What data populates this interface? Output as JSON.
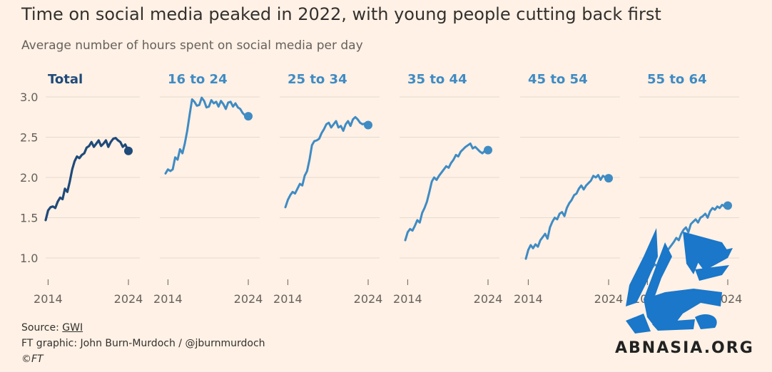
{
  "title": "Time on social media peaked in 2022, with young people cutting back first",
  "subtitle": "Average number of hours spent on social media per day",
  "source_prefix": "Source: ",
  "source_link": "GWI",
  "credit": "FT graphic: John Burn-Murdoch / @jburnmurdoch",
  "copyright": "©FT",
  "watermark_text": "ABNASIA.ORG",
  "colors": {
    "total": "#1f4a7a",
    "age": "#3f8bc4",
    "grid": "#e6d9ce",
    "background": "#fff1e5"
  },
  "chart_data": {
    "type": "line",
    "ylim": [
      0.8,
      3.1
    ],
    "yticks": [
      "3.0",
      "2.5",
      "2.0",
      "1.5",
      "1.0"
    ],
    "xlim": [
      2013.7,
      2024.0
    ],
    "xticks": [
      "2014",
      "2024"
    ],
    "grid": true,
    "panels": [
      {
        "name": "Total",
        "x": [
          2013.7,
          2014,
          2014.3,
          2014.6,
          2014.9,
          2015.2,
          2015.5,
          2015.8,
          2016.1,
          2016.4,
          2016.7,
          2017,
          2017.3,
          2017.6,
          2017.9,
          2018.2,
          2018.5,
          2018.8,
          2019.1,
          2019.4,
          2019.7,
          2020,
          2020.3,
          2020.6,
          2020.9,
          2021.2,
          2021.5,
          2021.8,
          2022.1,
          2022.4,
          2022.7,
          2023,
          2023.3,
          2023.6,
          2024
        ],
        "values": [
          1.47,
          1.59,
          1.63,
          1.64,
          1.62,
          1.7,
          1.75,
          1.73,
          1.86,
          1.82,
          1.95,
          2.1,
          2.2,
          2.26,
          2.24,
          2.28,
          2.3,
          2.37,
          2.39,
          2.44,
          2.38,
          2.42,
          2.46,
          2.39,
          2.42,
          2.46,
          2.38,
          2.44,
          2.48,
          2.49,
          2.46,
          2.44,
          2.38,
          2.41,
          2.33
        ]
      },
      {
        "name": "16 to 24",
        "x": [
          2013.7,
          2014,
          2014.3,
          2014.6,
          2014.9,
          2015.2,
          2015.5,
          2015.8,
          2016.1,
          2016.4,
          2016.7,
          2017,
          2017.3,
          2017.6,
          2017.9,
          2018.2,
          2018.5,
          2018.8,
          2019.1,
          2019.4,
          2019.7,
          2020,
          2020.3,
          2020.6,
          2020.9,
          2021.2,
          2021.5,
          2021.8,
          2022.1,
          2022.4,
          2022.7,
          2023,
          2023.3,
          2023.6,
          2024
        ],
        "values": [
          2.05,
          2.1,
          2.08,
          2.1,
          2.25,
          2.22,
          2.35,
          2.3,
          2.42,
          2.58,
          2.78,
          2.97,
          2.94,
          2.89,
          2.9,
          2.99,
          2.95,
          2.87,
          2.88,
          2.96,
          2.92,
          2.94,
          2.88,
          2.95,
          2.91,
          2.85,
          2.93,
          2.94,
          2.88,
          2.92,
          2.87,
          2.85,
          2.8,
          2.77,
          2.76
        ]
      },
      {
        "name": "25 to 34",
        "x": [
          2013.7,
          2014,
          2014.3,
          2014.6,
          2014.9,
          2015.2,
          2015.5,
          2015.8,
          2016.1,
          2016.4,
          2016.7,
          2017,
          2017.3,
          2017.6,
          2017.9,
          2018.2,
          2018.5,
          2018.8,
          2019.1,
          2019.4,
          2019.7,
          2020,
          2020.3,
          2020.6,
          2020.9,
          2021.2,
          2021.5,
          2021.8,
          2022.1,
          2022.4,
          2022.7,
          2023,
          2023.3,
          2023.6,
          2024
        ],
        "values": [
          1.63,
          1.72,
          1.78,
          1.82,
          1.8,
          1.86,
          1.92,
          1.9,
          2.02,
          2.08,
          2.22,
          2.4,
          2.45,
          2.46,
          2.48,
          2.55,
          2.6,
          2.66,
          2.68,
          2.62,
          2.66,
          2.7,
          2.62,
          2.64,
          2.58,
          2.66,
          2.7,
          2.64,
          2.72,
          2.75,
          2.72,
          2.68,
          2.66,
          2.67,
          2.65
        ]
      },
      {
        "name": "35 to 44",
        "x": [
          2013.7,
          2014,
          2014.3,
          2014.6,
          2014.9,
          2015.2,
          2015.5,
          2015.8,
          2016.1,
          2016.4,
          2016.7,
          2017,
          2017.3,
          2017.6,
          2017.9,
          2018.2,
          2018.5,
          2018.8,
          2019.1,
          2019.4,
          2019.7,
          2020,
          2020.3,
          2020.6,
          2020.9,
          2021.2,
          2021.5,
          2021.8,
          2022.1,
          2022.4,
          2022.7,
          2023,
          2023.3,
          2023.6,
          2024
        ],
        "values": [
          1.22,
          1.32,
          1.36,
          1.34,
          1.4,
          1.47,
          1.44,
          1.56,
          1.62,
          1.7,
          1.82,
          1.95,
          2.0,
          1.97,
          2.02,
          2.06,
          2.1,
          2.14,
          2.12,
          2.18,
          2.22,
          2.28,
          2.26,
          2.32,
          2.35,
          2.38,
          2.4,
          2.42,
          2.36,
          2.38,
          2.35,
          2.32,
          2.3,
          2.33,
          2.34
        ]
      },
      {
        "name": "45 to 54",
        "x": [
          2013.7,
          2014,
          2014.3,
          2014.6,
          2014.9,
          2015.2,
          2015.5,
          2015.8,
          2016.1,
          2016.4,
          2016.7,
          2017,
          2017.3,
          2017.6,
          2017.9,
          2018.2,
          2018.5,
          2018.8,
          2019.1,
          2019.4,
          2019.7,
          2020,
          2020.3,
          2020.6,
          2020.9,
          2021.2,
          2021.5,
          2021.8,
          2022.1,
          2022.4,
          2022.7,
          2023,
          2023.3,
          2023.6,
          2024
        ],
        "values": [
          0.99,
          1.1,
          1.16,
          1.12,
          1.17,
          1.14,
          1.22,
          1.26,
          1.3,
          1.24,
          1.38,
          1.45,
          1.5,
          1.48,
          1.55,
          1.57,
          1.52,
          1.62,
          1.68,
          1.72,
          1.78,
          1.8,
          1.86,
          1.9,
          1.85,
          1.9,
          1.93,
          1.96,
          2.02,
          2.0,
          2.03,
          1.97,
          2.02,
          2.0,
          1.99
        ]
      },
      {
        "name": "55 to 64",
        "x": [
          2013.7,
          2014,
          2014.3,
          2014.6,
          2014.9,
          2015.2,
          2015.5,
          2015.8,
          2016.1,
          2016.4,
          2016.7,
          2017,
          2017.3,
          2017.6,
          2017.9,
          2018.2,
          2018.5,
          2018.8,
          2019.1,
          2019.4,
          2019.7,
          2020,
          2020.3,
          2020.6,
          2020.9,
          2021.2,
          2021.5,
          2021.8,
          2022.1,
          2022.4,
          2022.7,
          2023,
          2023.3,
          2023.6,
          2024
        ],
        "values": [
          0.8,
          0.86,
          0.82,
          0.88,
          0.92,
          0.9,
          0.98,
          0.95,
          1.05,
          1.08,
          1.12,
          1.16,
          1.2,
          1.25,
          1.22,
          1.3,
          1.35,
          1.38,
          1.32,
          1.42,
          1.45,
          1.48,
          1.44,
          1.5,
          1.52,
          1.55,
          1.5,
          1.58,
          1.62,
          1.6,
          1.64,
          1.62,
          1.66,
          1.64,
          1.65
        ]
      }
    ]
  }
}
